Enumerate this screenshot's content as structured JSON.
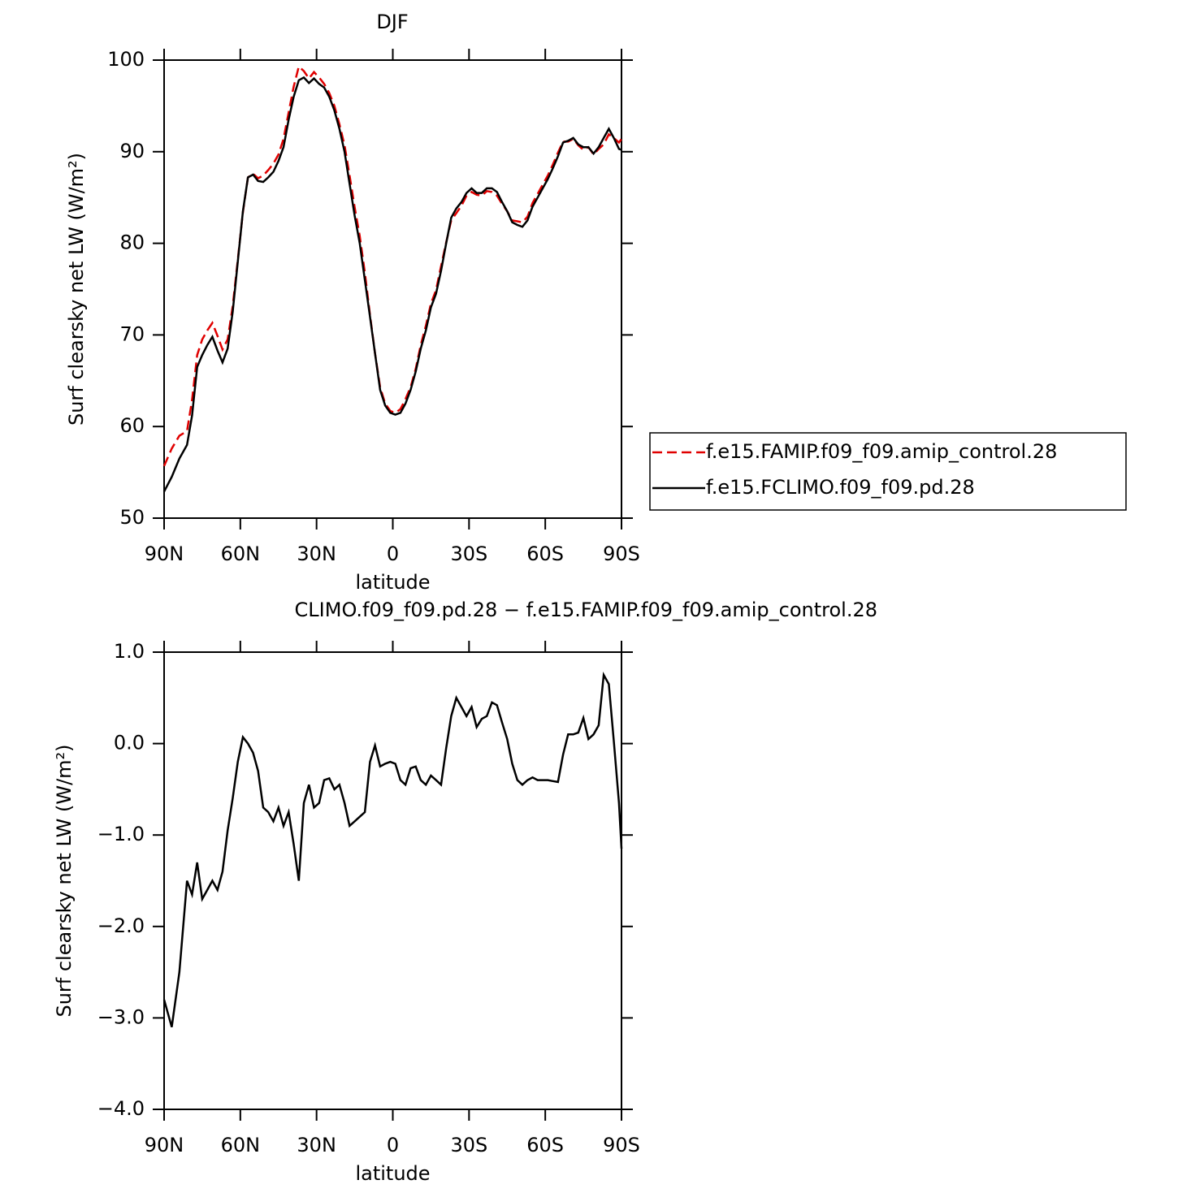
{
  "chart_data": [
    {
      "type": "line",
      "title": "DJF",
      "xlabel": "latitude",
      "ylabel": "Surf clearsky net LW (W/m²)",
      "xlim": [
        90,
        -90
      ],
      "ylim": [
        50,
        100
      ],
      "xticks": [
        {
          "value": 90,
          "label": "90N"
        },
        {
          "value": 60,
          "label": "60N"
        },
        {
          "value": 30,
          "label": "30N"
        },
        0,
        {
          "value": -30,
          "label": "30S"
        },
        {
          "value": -60,
          "label": "60S"
        },
        {
          "value": -90,
          "label": "90S"
        }
      ],
      "yticks": [
        50,
        60,
        70,
        80,
        90,
        100
      ],
      "legend": "right",
      "x": [
        90,
        87,
        84,
        81,
        79,
        77,
        75,
        73,
        71,
        69,
        67,
        65,
        63,
        61,
        59,
        57,
        55,
        53,
        51,
        49,
        47,
        45,
        43,
        41,
        39,
        37,
        35,
        33,
        31,
        29,
        27,
        25,
        23,
        21,
        19,
        17,
        15,
        13,
        11,
        9,
        7,
        5,
        3,
        1,
        -1,
        -3,
        -5,
        -7,
        -9,
        -11,
        -13,
        -15,
        -17,
        -19,
        -21,
        -23,
        -25,
        -27,
        -29,
        -31,
        -33,
        -35,
        -37,
        -39,
        -41,
        -43,
        -45,
        -47,
        -49,
        -51,
        -53,
        -55,
        -57,
        -59,
        -61,
        -63,
        -65,
        -67,
        -69,
        -71,
        -73,
        -75,
        -77,
        -79,
        -81,
        -83,
        -85,
        -87,
        -89,
        -90
      ],
      "series": [
        {
          "name": "f.e15.FAMIP.f09_f09.amip_control.28",
          "color": "#e00000",
          "linestyle": "dashed",
          "values": [
            55.7,
            57.6,
            59.0,
            59.5,
            62.9,
            67.8,
            69.5,
            70.5,
            71.3,
            69.9,
            68.4,
            69.5,
            73.1,
            78.2,
            83.4,
            87.2,
            87.6,
            87.1,
            87.4,
            88.0,
            88.7,
            89.7,
            91.4,
            94.3,
            97.1,
            99.3,
            98.8,
            98.0,
            98.7,
            98.1,
            97.4,
            96.4,
            95.0,
            93.0,
            90.7,
            87.4,
            83.9,
            80.8,
            76.8,
            72.2,
            68.0,
            64.3,
            62.5,
            61.7,
            61.5,
            61.9,
            63.0,
            64.3,
            66.3,
            68.9,
            71.0,
            73.4,
            74.9,
            77.5,
            80.1,
            82.5,
            83.3,
            84.1,
            85.2,
            85.6,
            85.3,
            85.2,
            85.7,
            85.6,
            85.2,
            84.3,
            83.5,
            82.5,
            82.4,
            82.3,
            82.9,
            84.4,
            85.4,
            86.4,
            87.4,
            88.6,
            89.9,
            91.1,
            91.1,
            91.4,
            90.7,
            90.2,
            90.5,
            89.7,
            90.3,
            90.8,
            91.9,
            91.5,
            91.0,
            91.4
          ]
        },
        {
          "name": "f.e15.FCLIMO.f09_f09.pd.28",
          "color": "#000000",
          "linestyle": "solid",
          "values": [
            52.9,
            54.5,
            56.5,
            58.0,
            61.2,
            66.5,
            67.8,
            68.9,
            69.8,
            68.3,
            67.0,
            68.5,
            72.5,
            78.0,
            83.5,
            87.2,
            87.5,
            86.8,
            86.7,
            87.2,
            87.8,
            89.0,
            90.5,
            93.5,
            96.0,
            97.8,
            98.1,
            97.5,
            98.0,
            97.4,
            97.0,
            96.0,
            94.5,
            92.5,
            90.0,
            86.5,
            83.0,
            80.0,
            76.0,
            72.0,
            68.0,
            64.0,
            62.3,
            61.5,
            61.3,
            61.5,
            62.5,
            64.0,
            66.0,
            68.5,
            70.5,
            73.0,
            74.5,
            77.0,
            80.0,
            82.8,
            83.8,
            84.5,
            85.5,
            86.0,
            85.5,
            85.5,
            86.0,
            86.0,
            85.6,
            84.5,
            83.5,
            82.3,
            82.0,
            81.8,
            82.5,
            84.0,
            85.0,
            86.0,
            87.0,
            88.2,
            89.5,
            91.0,
            91.2,
            91.5,
            90.8,
            90.5,
            90.5,
            89.8,
            90.5,
            91.5,
            92.5,
            91.5,
            90.3,
            90.2
          ]
        }
      ]
    },
    {
      "type": "line",
      "title": "CLIMO.f09_f09.pd.28 − f.e15.FAMIP.f09_f09.amip_control.28",
      "xlabel": "latitude",
      "ylabel": "Surf clearsky net LW (W/m²)",
      "xlim": [
        90,
        -90
      ],
      "ylim": [
        -4,
        1
      ],
      "xticks": [
        {
          "value": 90,
          "label": "90N"
        },
        {
          "value": 60,
          "label": "60N"
        },
        {
          "value": 30,
          "label": "30N"
        },
        0,
        {
          "value": -30,
          "label": "30S"
        },
        {
          "value": -60,
          "label": "60S"
        },
        {
          "value": -90,
          "label": "90S"
        }
      ],
      "yticks": [
        {
          "value": -4,
          "label": "−4.0"
        },
        {
          "value": -3,
          "label": "−3.0"
        },
        {
          "value": -2,
          "label": "−2.0"
        },
        {
          "value": -1,
          "label": "−1.0"
        },
        {
          "value": 0,
          "label": "0.0"
        },
        {
          "value": 1,
          "label": "1.0"
        }
      ],
      "x": [
        90,
        87,
        84,
        81,
        79,
        77,
        75,
        73,
        71,
        69,
        67,
        65,
        63,
        61,
        59,
        57,
        55,
        53,
        51,
        49,
        47,
        45,
        43,
        41,
        39,
        37,
        35,
        33,
        31,
        29,
        27,
        25,
        23,
        21,
        19,
        17,
        15,
        13,
        11,
        9,
        7,
        5,
        3,
        1,
        -1,
        -3,
        -5,
        -7,
        -9,
        -11,
        -13,
        -15,
        -17,
        -19,
        -21,
        -23,
        -25,
        -27,
        -29,
        -31,
        -33,
        -35,
        -37,
        -39,
        -41,
        -43,
        -45,
        -47,
        -49,
        -51,
        -53,
        -55,
        -57,
        -59,
        -61,
        -63,
        -65,
        -67,
        -69,
        -71,
        -73,
        -75,
        -77,
        -79,
        -81,
        -83,
        -85,
        -87,
        -89,
        -90
      ],
      "series": [
        {
          "color": "#000000",
          "linestyle": "solid",
          "values": [
            -2.8,
            -3.1,
            -2.5,
            -1.5,
            -1.65,
            -1.3,
            -1.7,
            -1.6,
            -1.5,
            -1.6,
            -1.4,
            -0.95,
            -0.6,
            -0.2,
            0.07,
            0.0,
            -0.1,
            -0.3,
            -0.7,
            -0.75,
            -0.85,
            -0.7,
            -0.9,
            -0.75,
            -1.1,
            -1.5,
            -0.65,
            -0.45,
            -0.7,
            -0.65,
            -0.4,
            -0.38,
            -0.5,
            -0.45,
            -0.65,
            -0.9,
            -0.85,
            -0.8,
            -0.75,
            -0.2,
            -0.02,
            -0.25,
            -0.22,
            -0.2,
            -0.22,
            -0.4,
            -0.45,
            -0.27,
            -0.25,
            -0.4,
            -0.45,
            -0.35,
            -0.4,
            -0.45,
            -0.05,
            0.3,
            0.5,
            0.4,
            0.3,
            0.4,
            0.18,
            0.27,
            0.3,
            0.45,
            0.42,
            0.23,
            0.05,
            -0.22,
            -0.4,
            -0.45,
            -0.4,
            -0.37,
            -0.4,
            -0.4,
            -0.4,
            -0.41,
            -0.42,
            -0.12,
            0.1,
            0.1,
            0.12,
            0.28,
            0.05,
            0.1,
            0.2,
            0.75,
            0.65,
            0.02,
            -0.65,
            -1.15
          ]
        }
      ]
    }
  ]
}
